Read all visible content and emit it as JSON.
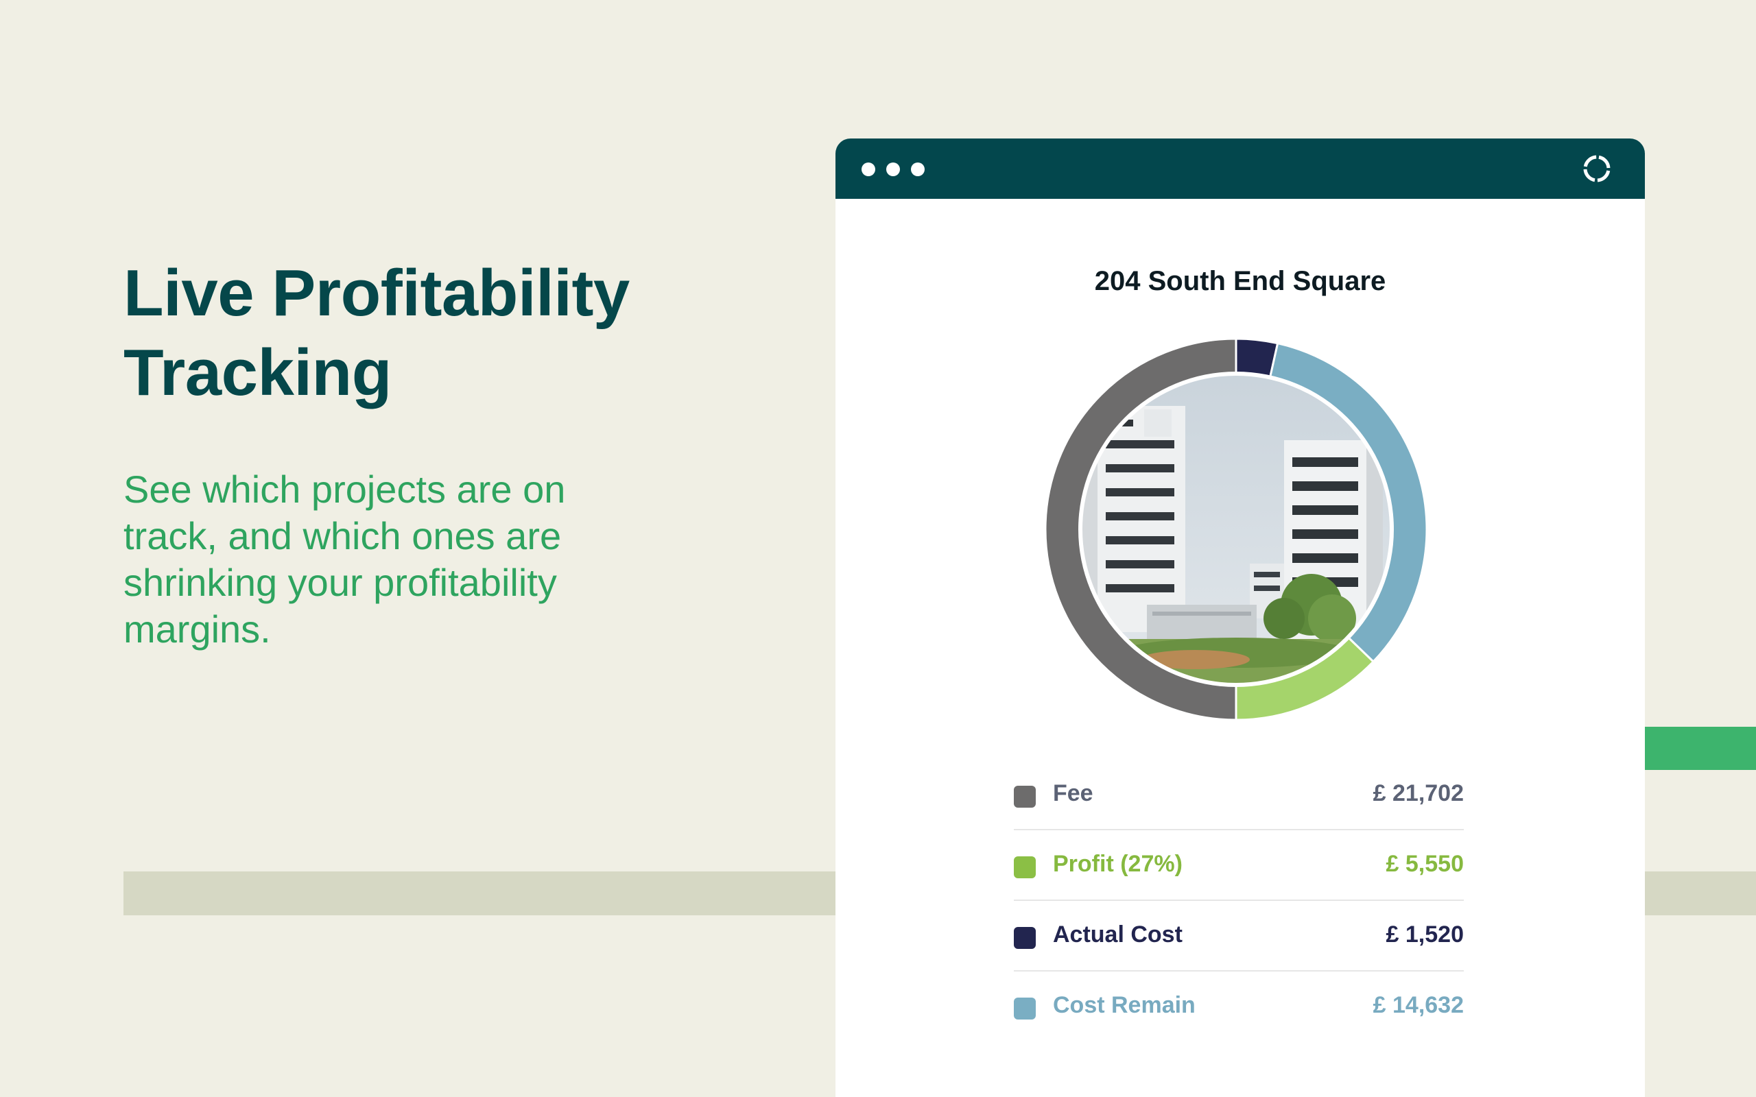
{
  "hero": {
    "headline_line1": "Live Profitability",
    "headline_line2": "Tracking",
    "subhead": "See which projects are on track, and which ones are shrinking your profitability margins."
  },
  "window": {
    "titlebar_color": "#03474d",
    "window_controls": [
      "dot",
      "dot",
      "dot"
    ],
    "status_icon": "loading-spinner-icon",
    "project_title": "204 South End Square",
    "photo": "office-buildings-photo"
  },
  "chart_data": {
    "type": "pie",
    "variant": "donut",
    "categories": [
      "Fee",
      "Profit (27%)",
      "Actual Cost",
      "Cost Remain"
    ],
    "values": [
      21702,
      5550,
      1520,
      14632
    ],
    "colors": [
      "#6d6c6c",
      "#a5d46b",
      "#22254f",
      "#7aaec3"
    ],
    "currency": "£"
  },
  "legend": [
    {
      "label": "Fee",
      "value": "£ 21,702",
      "swatch_color": "#6d6c6c",
      "text_color": "#5b6275"
    },
    {
      "label": "Profit (27%)",
      "value": "£ 5,550",
      "swatch_color": "#8bbf45",
      "text_color": "#86b93f"
    },
    {
      "label": "Actual Cost",
      "value": "£ 1,520",
      "swatch_color": "#22254f",
      "text_color": "#22254f"
    },
    {
      "label": "Cost Remain",
      "value": "£ 14,632",
      "swatch_color": "#7aaec3",
      "text_color": "#78aac0"
    }
  ]
}
